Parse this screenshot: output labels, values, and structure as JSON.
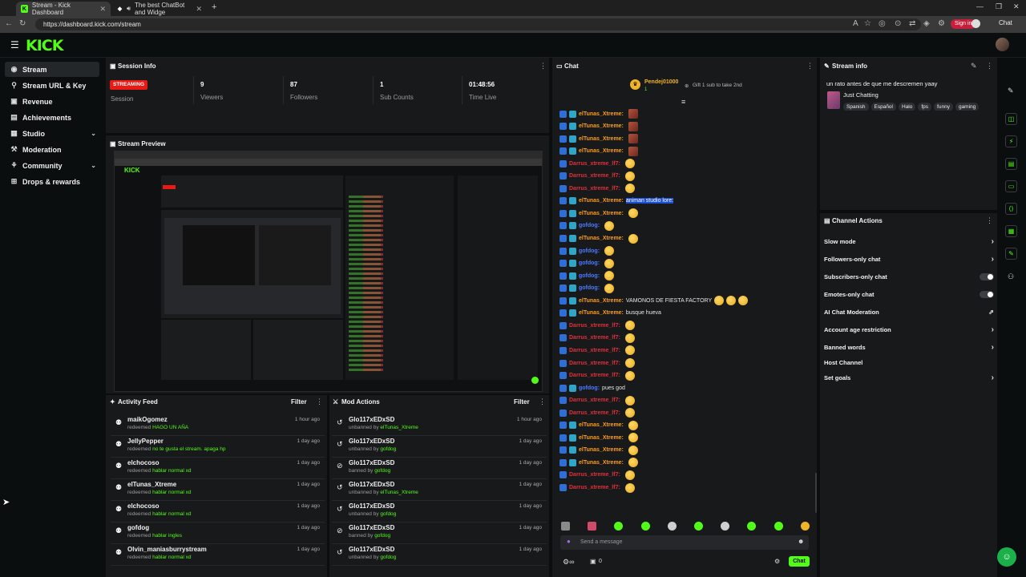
{
  "browser": {
    "tabs": [
      {
        "title": "Stream - Kick Dashboard"
      },
      {
        "title": "The best ChatBot and Widge"
      }
    ],
    "url": "https://dashboard.kick.com/stream",
    "sign_in": "Sign in",
    "chat_label": "Chat"
  },
  "header": {
    "logo": "KICK"
  },
  "sidebar": {
    "items": [
      {
        "label": "Stream",
        "icon": "wifi-icon"
      },
      {
        "label": "Stream URL & Key",
        "icon": "link-icon"
      },
      {
        "label": "Revenue",
        "icon": "revenue-icon"
      },
      {
        "label": "Achievements",
        "icon": "achievements-icon"
      },
      {
        "label": "Studio",
        "icon": "studio-icon"
      },
      {
        "label": "Moderation",
        "icon": "gavel-icon"
      },
      {
        "label": "Community",
        "icon": "community-icon"
      },
      {
        "label": "Drops & rewards",
        "icon": "gift-icon"
      }
    ]
  },
  "session": {
    "title": "Session Info",
    "badge": "STREAMING",
    "label": "Session",
    "stats": [
      {
        "value": "9",
        "label": "Viewers"
      },
      {
        "value": "87",
        "label": "Followers"
      },
      {
        "value": "1",
        "label": "Sub Counts"
      },
      {
        "value": "01:48:56",
        "label": "Time Live"
      }
    ]
  },
  "preview": {
    "title": "Stream Preview"
  },
  "activity": {
    "title": "Activity Feed",
    "filter": "Filter",
    "rows": [
      {
        "name": "maikOgomez",
        "action": "redeemed",
        "detail": "HAGO UN AÑA",
        "time": "1 hour ago"
      },
      {
        "name": "JellyPepper",
        "action": "redeemed",
        "detail": "no te gusta el stream. apaga hp",
        "time": "1 day ago"
      },
      {
        "name": "elchocoso",
        "action": "redeemed",
        "detail": "hablar normal xd",
        "time": "1 day ago"
      },
      {
        "name": "elTunas_Xtreme",
        "action": "redeemed",
        "detail": "hablar normal xd",
        "time": "1 day ago"
      },
      {
        "name": "elchocoso",
        "action": "redeemed",
        "detail": "hablar normal xd",
        "time": "1 day ago"
      },
      {
        "name": "gofdog",
        "action": "redeemed",
        "detail": "hablar ingles",
        "time": "1 day ago"
      },
      {
        "name": "Olvin_maniasburrystream",
        "action": "redeemed",
        "detail": "hablar normal xd",
        "time": "1 day ago"
      }
    ]
  },
  "mod": {
    "title": "Mod Actions",
    "filter": "Filter",
    "rows": [
      {
        "name": "Glo117xEDxSD",
        "action": "unbanned by",
        "detail": "elTunas_Xtreme",
        "time": "1 hour ago",
        "icon": "undo-icon"
      },
      {
        "name": "Glo117xEDxSD",
        "action": "unbanned by",
        "detail": "gofdog",
        "time": "1 day ago",
        "icon": "undo-icon"
      },
      {
        "name": "Glo117xEDxSD",
        "action": "banned by",
        "detail": "gofdog",
        "time": "1 day ago",
        "icon": "ban-icon"
      },
      {
        "name": "Glo117xEDxSD",
        "action": "unbanned by",
        "detail": "elTunas_Xtreme",
        "time": "1 day ago",
        "icon": "undo-icon"
      },
      {
        "name": "Glo117xEDxSD",
        "action": "unbanned by",
        "detail": "gofdog",
        "time": "1 day ago",
        "icon": "undo-icon"
      },
      {
        "name": "Glo117xEDxSD",
        "action": "banned by",
        "detail": "gofdog",
        "time": "1 day ago",
        "icon": "ban-icon"
      },
      {
        "name": "Glo117xEDxSD",
        "action": "unbanned by",
        "detail": "gofdog",
        "time": "1 day ago",
        "icon": "undo-icon"
      }
    ]
  },
  "chat": {
    "title": "Chat",
    "pinned_user": "Pendej01000",
    "pinned_count": "1",
    "pinned_text": "Gift 1 sub to take 2nd",
    "placeholder": "Send a message",
    "send": "Chat",
    "counter": "0",
    "lines": [
      {
        "user": "elTunas_Xtreme:",
        "color": "#ff9d1a",
        "text": "",
        "emote": "sq"
      },
      {
        "user": "elTunas_Xtreme:",
        "color": "#ff9d1a",
        "text": "",
        "emote": "sq"
      },
      {
        "user": "elTunas_Xtreme:",
        "color": "#ff9d1a",
        "text": "",
        "emote": "sq"
      },
      {
        "user": "elTunas_Xtreme:",
        "color": "#ff9d1a",
        "text": "",
        "emote": "sq"
      },
      {
        "user": "Darrus_xtreme_lf7:",
        "color": "#e0313b",
        "text": "",
        "emote": "face"
      },
      {
        "user": "Darrus_xtreme_lf7:",
        "color": "#e0313b",
        "text": "",
        "emote": "face"
      },
      {
        "user": "Darrus_xtreme_lf7:",
        "color": "#e0313b",
        "text": "",
        "emote": "face"
      },
      {
        "user": "elTunas_Xtreme:",
        "color": "#ff9d1a",
        "text": "animan studio lore:",
        "emote": ""
      },
      {
        "user": "elTunas_Xtreme:",
        "color": "#ff9d1a",
        "text": "",
        "emote": "face"
      },
      {
        "user": "gofdog:",
        "color": "#4b7bff",
        "text": "",
        "emote": "face"
      },
      {
        "user": "elTunas_Xtreme:",
        "color": "#ff9d1a",
        "text": "",
        "emote": "face"
      },
      {
        "user": "gofdog:",
        "color": "#4b7bff",
        "text": "",
        "emote": "face"
      },
      {
        "user": "gofdog:",
        "color": "#4b7bff",
        "text": "",
        "emote": "face"
      },
      {
        "user": "gofdog:",
        "color": "#4b7bff",
        "text": "",
        "emote": "face"
      },
      {
        "user": "gofdog:",
        "color": "#4b7bff",
        "text": "",
        "emote": "face"
      },
      {
        "user": "elTunas_Xtreme:",
        "color": "#ff9d1a",
        "text": "VAMONOS DE FIESTA FACTORY",
        "emote": "face3"
      },
      {
        "user": "elTunas_Xtreme:",
        "color": "#ff9d1a",
        "text": "busque hueva",
        "emote": ""
      },
      {
        "user": "Darrus_xtreme_lf7:",
        "color": "#e0313b",
        "text": "",
        "emote": "face"
      },
      {
        "user": "Darrus_xtreme_lf7:",
        "color": "#e0313b",
        "text": "",
        "emote": "face"
      },
      {
        "user": "Darrus_xtreme_lf7:",
        "color": "#e0313b",
        "text": "",
        "emote": "face"
      },
      {
        "user": "Darrus_xtreme_lf7:",
        "color": "#e0313b",
        "text": "",
        "emote": "face"
      },
      {
        "user": "Darrus_xtreme_lf7:",
        "color": "#e0313b",
        "text": "",
        "emote": "face"
      },
      {
        "user": "gofdog:",
        "color": "#4b7bff",
        "text": "pues god",
        "emote": ""
      },
      {
        "user": "Darrus_xtreme_lf7:",
        "color": "#e0313b",
        "text": "",
        "emote": "face"
      },
      {
        "user": "Darrus_xtreme_lf7:",
        "color": "#e0313b",
        "text": "",
        "emote": "face"
      },
      {
        "user": "elTunas_Xtreme:",
        "color": "#ff9d1a",
        "text": "",
        "emote": "face"
      },
      {
        "user": "elTunas_Xtreme:",
        "color": "#ff9d1a",
        "text": "",
        "emote": "face"
      },
      {
        "user": "elTunas_Xtreme:",
        "color": "#ff9d1a",
        "text": "",
        "emote": "face"
      },
      {
        "user": "elTunas_Xtreme:",
        "color": "#ff9d1a",
        "text": "",
        "emote": "face"
      },
      {
        "user": "Darrus_xtreme_lf7:",
        "color": "#e0313b",
        "text": "",
        "emote": "face"
      },
      {
        "user": "Darrus_xtreme_lf7:",
        "color": "#e0313b",
        "text": "",
        "emote": "face"
      }
    ]
  },
  "stream_info": {
    "title": "Stream info",
    "stream_title": "un rato antes de que me descremen yaay",
    "category": "Just Chatting",
    "tags": [
      "Spanish",
      "Español",
      "Halo",
      "fps",
      "funny",
      "gaming"
    ]
  },
  "channel_actions": {
    "title": "Channel Actions",
    "items": [
      {
        "label": "Slow mode",
        "control": "chevron"
      },
      {
        "label": "Followers-only chat",
        "control": "chevron"
      },
      {
        "label": "Subscribers-only chat",
        "control": "toggle"
      },
      {
        "label": "Emotes-only chat",
        "control": "toggle"
      },
      {
        "label": "AI Chat Moderation",
        "control": "external"
      },
      {
        "label": "Account age restriction",
        "control": "chevron"
      },
      {
        "label": "Banned words",
        "control": "chevron"
      },
      {
        "label": "Host Channel",
        "control": "none"
      },
      {
        "label": "Set goals",
        "control": "chevron"
      }
    ]
  },
  "colors": {
    "brand_green": "#53fc18",
    "streaming_red": "#e91916",
    "panel_bg": "#18191b",
    "page_bg": "#0b0e0f"
  }
}
